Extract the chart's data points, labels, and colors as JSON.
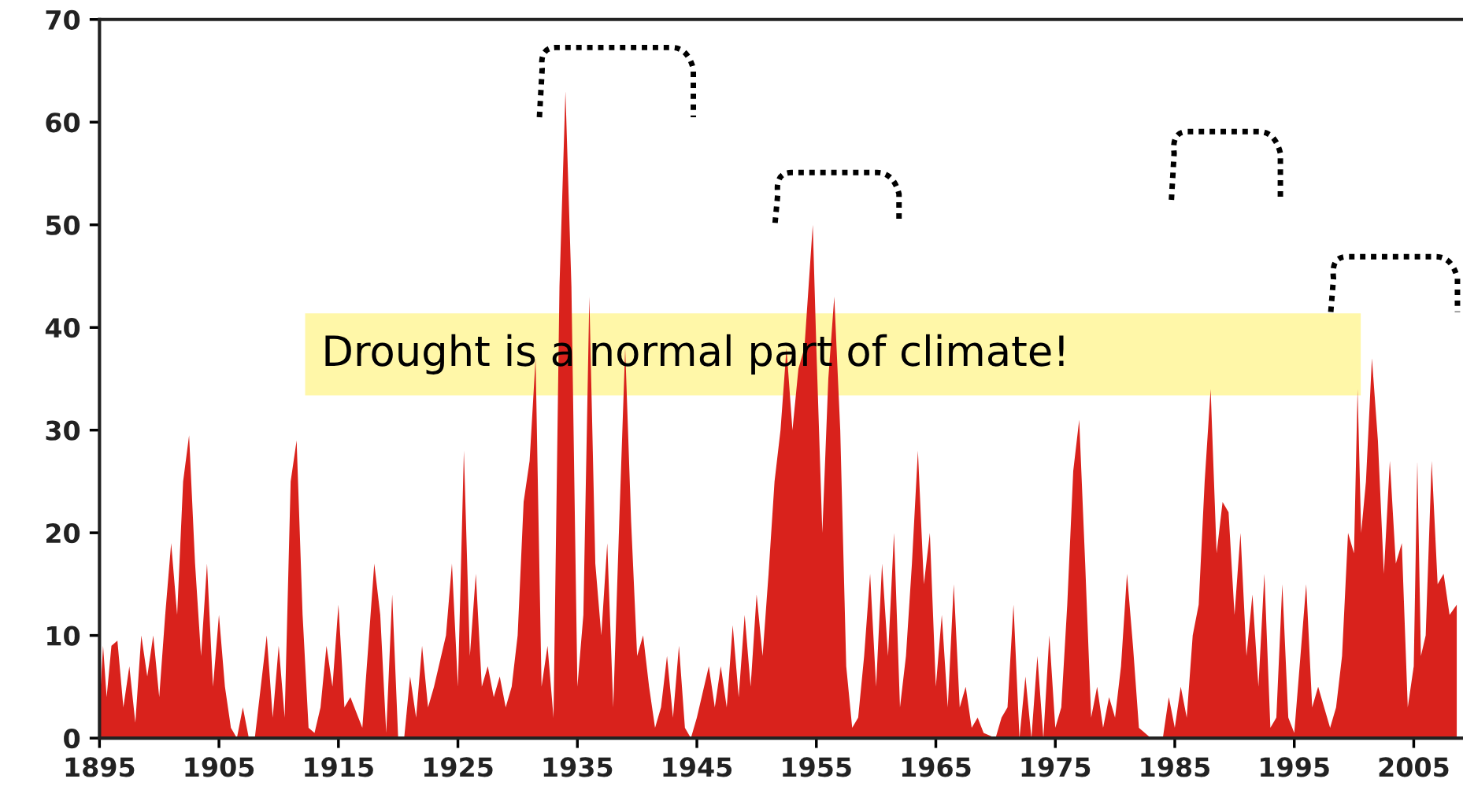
{
  "chart_data": {
    "type": "area",
    "annotations": [
      "Drought is a normal part of climate!"
    ],
    "xlim": [
      1895,
      2009
    ],
    "ylim": [
      0,
      70
    ],
    "xticks": [
      1895,
      1905,
      1915,
      1925,
      1935,
      1945,
      1955,
      1965,
      1975,
      1985,
      1995,
      2005
    ],
    "yticks": [
      0,
      10,
      20,
      30,
      40,
      50,
      60,
      70
    ],
    "grid": false,
    "legend": false,
    "series": [
      {
        "color": "#d9221c",
        "x": [
          1895,
          1895.3,
          1895.6,
          1896,
          1896.5,
          1897,
          1897.5,
          1898,
          1898.5,
          1899,
          1899.5,
          1900,
          1900.5,
          1901,
          1901.5,
          1902,
          1902.5,
          1903,
          1903.5,
          1904,
          1904.5,
          1905,
          1905.5,
          1906,
          1906.5,
          1907,
          1907.5,
          1908,
          1909,
          1909.5,
          1910,
          1910.5,
          1911,
          1911.5,
          1912,
          1912.5,
          1913,
          1913.5,
          1914,
          1914.5,
          1915,
          1915.5,
          1916,
          1917,
          1917.5,
          1918,
          1918.5,
          1919,
          1919.5,
          1920,
          1920.5,
          1921,
          1921.5,
          1922,
          1922.5,
          1923,
          1924,
          1924.5,
          1925,
          1925.5,
          1926,
          1926.5,
          1927,
          1927.5,
          1928,
          1928.5,
          1929,
          1929.5,
          1930,
          1930.5,
          1931,
          1931.5,
          1932,
          1932.5,
          1933,
          1933.5,
          1934,
          1934.5,
          1935,
          1935.5,
          1936,
          1936.5,
          1937,
          1937.5,
          1938,
          1938.5,
          1939,
          1939.5,
          1940,
          1940.5,
          1941,
          1941.5,
          1942,
          1942.5,
          1943,
          1943.5,
          1944,
          1944.5,
          1945,
          1946,
          1946.5,
          1947,
          1947.5,
          1948,
          1948.5,
          1949,
          1949.5,
          1950,
          1950.5,
          1951,
          1951.5,
          1952,
          1952.5,
          1953,
          1953.5,
          1954,
          1954.7,
          1955,
          1955.5,
          1956,
          1956.5,
          1957,
          1957.5,
          1958,
          1958.5,
          1959,
          1959.5,
          1960,
          1960.5,
          1961,
          1961.5,
          1962,
          1962.5,
          1963,
          1963.5,
          1964,
          1964.5,
          1965,
          1965.5,
          1966,
          1966.5,
          1967,
          1967.5,
          1968,
          1968.5,
          1969,
          1970,
          1970.5,
          1971,
          1971.5,
          1972,
          1972.5,
          1973,
          1973.5,
          1974,
          1974.5,
          1975,
          1975.5,
          1976,
          1976.5,
          1977,
          1977.5,
          1978,
          1978.5,
          1979,
          1979.5,
          1980,
          1980.5,
          1981,
          1981.5,
          1982,
          1983,
          1984,
          1984.5,
          1985,
          1985.5,
          1986,
          1986.5,
          1987,
          1987.5,
          1988,
          1988.5,
          1989,
          1989.5,
          1990,
          1990.5,
          1991,
          1991.5,
          1992,
          1992.5,
          1993,
          1993.5,
          1994,
          1994.5,
          1995,
          1996,
          1996.5,
          1997,
          1997.5,
          1998,
          1998.5,
          1999,
          1999.5,
          2000,
          2000.3,
          2000.6,
          2001,
          2001.5,
          2002,
          2002.5,
          2003,
          2003.5,
          2004,
          2004.5,
          2005,
          2005.3,
          2005.6,
          2006,
          2006.5,
          2007,
          2007.5,
          2008,
          2008.6
        ],
        "values": [
          3,
          9,
          4,
          9,
          9.5,
          3,
          7,
          1.5,
          10,
          6,
          10,
          4,
          12,
          19,
          12,
          25,
          29.5,
          17,
          8,
          17,
          5,
          12,
          5,
          1,
          0,
          3,
          0,
          0,
          10,
          2,
          9,
          2,
          25,
          29,
          12,
          1,
          0.5,
          3,
          9,
          5,
          13,
          3,
          4,
          1,
          9,
          17,
          12,
          0.5,
          14,
          0,
          0,
          6,
          2,
          9,
          3,
          5,
          10,
          17,
          5,
          28,
          8,
          16,
          5,
          7,
          4,
          6,
          3,
          5,
          10,
          23,
          27,
          37,
          5,
          9,
          2,
          44,
          63,
          44,
          5,
          12,
          43,
          17,
          10,
          19,
          3,
          21,
          38,
          21,
          8,
          10,
          5,
          1,
          3,
          8,
          2,
          9,
          1,
          0,
          2,
          7,
          3,
          7,
          3,
          11,
          4,
          12,
          5,
          14,
          8,
          16,
          25,
          30,
          38,
          30,
          36,
          38,
          50,
          38,
          20,
          35,
          43,
          30,
          7,
          1,
          2,
          8,
          16,
          5,
          17,
          8,
          20,
          3,
          8,
          17,
          28,
          15,
          20,
          5,
          12,
          3,
          15,
          3,
          5,
          1,
          2,
          0.5,
          0,
          2,
          3,
          13,
          0,
          6,
          0,
          8,
          0,
          10,
          1,
          3,
          13,
          26,
          31,
          17,
          2,
          5,
          1,
          4,
          2,
          7,
          16,
          9,
          1,
          0,
          0,
          4,
          1,
          5,
          2,
          10,
          13,
          25,
          34,
          18,
          23,
          22,
          12,
          20,
          8,
          14,
          5,
          16,
          1,
          2,
          15,
          2,
          0.5,
          15,
          3,
          5,
          3,
          1,
          3,
          8,
          20,
          18,
          34,
          20,
          25,
          37,
          29,
          16,
          27,
          17,
          19,
          3,
          7,
          27,
          8,
          10,
          27,
          15,
          16,
          12,
          13
        ]
      }
    ]
  }
}
